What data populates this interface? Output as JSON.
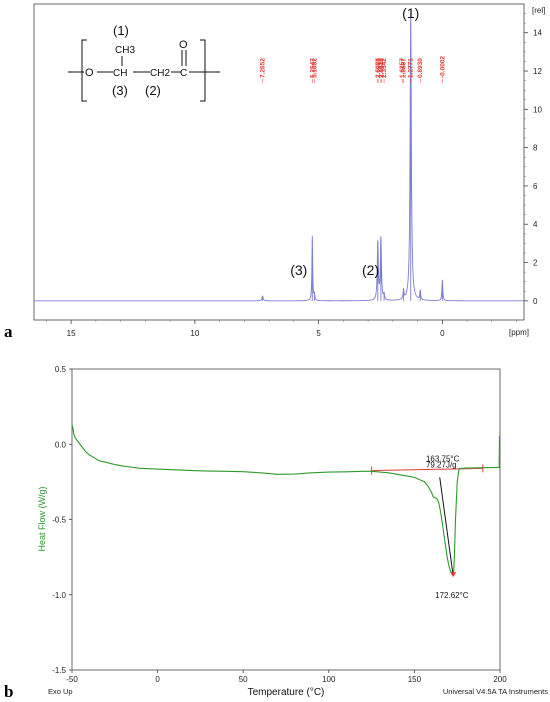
{
  "chart_data": [
    {
      "type": "line",
      "panel_label": "a",
      "xlabel": "[ppm]",
      "ylabel": "[rel]",
      "x_range": [
        16.5,
        -3.3
      ],
      "y_range": [
        -1,
        15.5
      ],
      "x_ticks": [
        "15",
        "10",
        "5",
        "0"
      ],
      "x_tick_values": [
        15,
        10,
        5,
        0
      ],
      "y_ticks": [
        "0",
        "2",
        "4",
        "6",
        "8",
        "10",
        "12",
        "14"
      ],
      "y_tick_values": [
        0,
        2,
        4,
        6,
        8,
        10,
        12,
        14
      ],
      "line_color": "#7b7fd1",
      "peaks": [
        {
          "ppm": 7.2652,
          "height": 0.25,
          "width": 0.03
        },
        {
          "ppm": 5.2543,
          "height": 3.4,
          "width": 0.018
        },
        {
          "ppm": 5.1682,
          "height": 0.3,
          "width": 0.02
        },
        {
          "ppm": 2.6084,
          "height": 3.1,
          "width": 0.025
        },
        {
          "ppm": 2.4816,
          "height": 3.3,
          "width": 0.025
        },
        {
          "ppm": 2.3542,
          "height": 0.3,
          "width": 0.02
        },
        {
          "ppm": 1.5667,
          "height": 0.5,
          "width": 0.02
        },
        {
          "ppm": 1.2771,
          "height": 15.0,
          "width": 0.03
        },
        {
          "ppm": 0.893,
          "height": 0.5,
          "width": 0.02
        },
        {
          "ppm": -0.0002,
          "height": 1.1,
          "width": 0.02
        }
      ],
      "shift_labels": [
        "7.2652",
        "5.2543",
        "5.1682",
        "2.6084",
        "2.5975",
        "2.4816",
        "2.4649",
        "2.3542",
        "1.6257",
        "1.5667",
        "1.2771",
        "0.8930",
        "-0.0002"
      ],
      "shift_label_positions": [
        7.2652,
        5.2543,
        5.1682,
        2.6084,
        2.5975,
        2.4816,
        2.4649,
        2.3542,
        1.6257,
        1.5667,
        1.2771,
        0.893,
        -0.0002
      ],
      "peak_annotations": [
        {
          "text": "(1)",
          "ppm": 1.2771
        },
        {
          "text": "(2)",
          "ppm": 2.9
        },
        {
          "text": "(3)",
          "ppm": 5.8
        }
      ],
      "structure": {
        "labels": [
          "(1)",
          "CH3",
          "O",
          "O",
          "CH",
          "CH2",
          "C",
          "(3)",
          "(2)"
        ]
      }
    },
    {
      "type": "line",
      "panel_label": "b",
      "xlabel": "Temperature (°C)",
      "ylabel": "Heat Flow (W/g)",
      "xlim": [
        -50,
        200
      ],
      "ylim": [
        -1.5,
        0.5
      ],
      "x_ticks": [
        "-50",
        "0",
        "50",
        "100",
        "150",
        "200"
      ],
      "x_tick_values": [
        -50,
        0,
        50,
        100,
        150,
        200
      ],
      "y_ticks": [
        "0.5",
        "0.0",
        "-0.5",
        "-1.0",
        "-1.5"
      ],
      "y_tick_values": [
        0.5,
        0.0,
        -0.5,
        -1.0,
        -1.5
      ],
      "line_color": "#2e9a2e",
      "series": [
        {
          "x": [
            -50,
            -49.5,
            -49,
            -48,
            -46,
            -44,
            -42,
            -40,
            -37,
            -34,
            -30,
            -25,
            -20,
            -10,
            0,
            10,
            20,
            30,
            40,
            50,
            60,
            70,
            80,
            90,
            100,
            110,
            120,
            125,
            130,
            135,
            140,
            145,
            150,
            152,
            154,
            156,
            158,
            160,
            161,
            162,
            163,
            164,
            165,
            166,
            167,
            168,
            169,
            170,
            171,
            172,
            172.6,
            173,
            173.5,
            174,
            175,
            176,
            177,
            178,
            180,
            185,
            190,
            195,
            199.5,
            199.7,
            200
          ],
          "y": [
            0.13,
            0.11,
            0.07,
            0.04,
            0.01,
            -0.02,
            -0.05,
            -0.07,
            -0.09,
            -0.11,
            -0.12,
            -0.135,
            -0.145,
            -0.16,
            -0.165,
            -0.17,
            -0.175,
            -0.178,
            -0.18,
            -0.182,
            -0.19,
            -0.2,
            -0.198,
            -0.19,
            -0.185,
            -0.183,
            -0.18,
            -0.18,
            -0.185,
            -0.19,
            -0.2,
            -0.21,
            -0.22,
            -0.23,
            -0.24,
            -0.25,
            -0.28,
            -0.32,
            -0.35,
            -0.355,
            -0.36,
            -0.38,
            -0.43,
            -0.5,
            -0.58,
            -0.66,
            -0.74,
            -0.8,
            -0.84,
            -0.86,
            -0.87,
            -0.84,
            -0.7,
            -0.5,
            -0.25,
            -0.17,
            -0.16,
            -0.16,
            -0.158,
            -0.157,
            -0.156,
            -0.155,
            -0.154,
            0.05,
            0.05
          ]
        }
      ],
      "baseline": {
        "x": [
          125,
          190
        ],
        "y": [
          -0.175,
          -0.16
        ],
        "color": "#e53935"
      },
      "tangent": {
        "x": [
          164.8,
          172.6
        ],
        "y": [
          -0.22,
          -0.87
        ],
        "color": "#111111"
      },
      "annotations": [
        {
          "text": "163.75°C",
          "x": 163.75,
          "y": -0.1
        },
        {
          "text": "79.27J/g",
          "x": 163.75,
          "y": -0.14
        },
        {
          "text": "172.62°C",
          "x": 172.62,
          "y": -1.0
        }
      ],
      "footer_left": "Exo Up",
      "footer_right": "Universal V4.5A TA Instruments"
    }
  ]
}
